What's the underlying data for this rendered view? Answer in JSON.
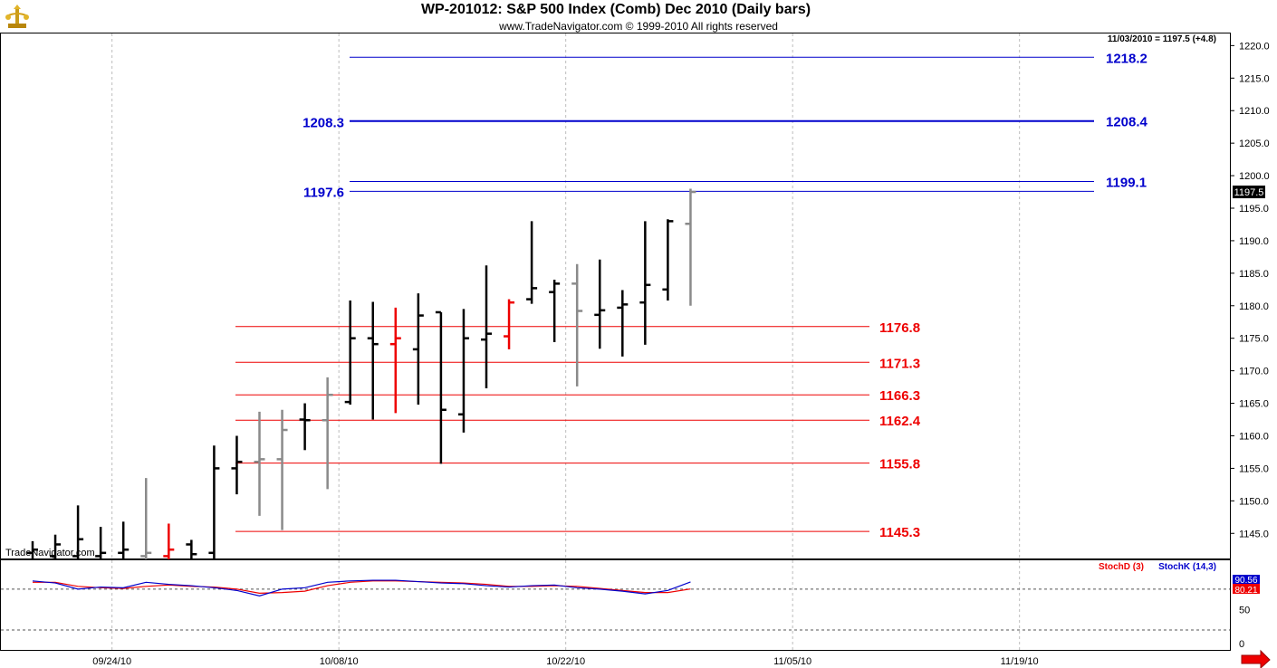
{
  "header": {
    "title": "WP-201012:  S&P 500 Index (Comb) Dec 2010  (Daily bars)",
    "subtitle": "www.TradeNavigator.com © 1999-2010 All rights reserved",
    "last_info": "11/03/2010 = 1197.5 (+4.8)",
    "watermark": "TradeNavigator.com"
  },
  "colors": {
    "up_bar": "#000000",
    "neutral_bar": "#8a8a8a",
    "down_bar": "#ee0000",
    "blue_level": "#0000cc",
    "red_level": "#ee0000",
    "stoch_d": "#ee0000",
    "stoch_k": "#0000cc",
    "grid": "#bcbcbc",
    "price_box": "#000000"
  },
  "icons": {
    "logo": "trade-navigator-logo-icon",
    "scroll": "scroll-right-arrow-icon"
  },
  "chart_data": {
    "type": "ohlc",
    "ylim": [
      1141,
      1222
    ],
    "y_ticks": [
      "1220.0",
      "1215.0",
      "1210.0",
      "1205.0",
      "1200.0",
      "1195.0",
      "1190.0",
      "1185.0",
      "1180.0",
      "1175.0",
      "1170.0",
      "1165.0",
      "1160.0",
      "1155.0",
      "1150.0",
      "1145.0"
    ],
    "x_ticks": [
      {
        "label": "09/24/10",
        "bar": 3.5
      },
      {
        "label": "10/08/10",
        "bar": 13.5
      },
      {
        "label": "10/22/10",
        "bar": 23.5
      },
      {
        "label": "11/05/10",
        "bar": 33.5
      },
      {
        "label": "11/19/10",
        "bar": 43.5
      }
    ],
    "last_price_label": "1197.5",
    "last_price": 1197.5,
    "bars": [
      {
        "o": 1142.0,
        "h": 1143.8,
        "l": 1141.0,
        "c": 1142.5,
        "color": "up"
      },
      {
        "o": 1141.5,
        "h": 1144.8,
        "l": 1141.0,
        "c": 1143.3,
        "color": "up"
      },
      {
        "o": 1141.5,
        "h": 1149.3,
        "l": 1141.0,
        "c": 1144.1,
        "color": "up"
      },
      {
        "o": 1141.5,
        "h": 1146.0,
        "l": 1141.0,
        "c": 1142.0,
        "color": "up"
      },
      {
        "o": 1142.0,
        "h": 1146.8,
        "l": 1141.0,
        "c": 1142.5,
        "color": "up"
      },
      {
        "o": 1141.5,
        "h": 1153.5,
        "l": 1141.0,
        "c": 1142.0,
        "color": "neutral"
      },
      {
        "o": 1141.5,
        "h": 1146.5,
        "l": 1141.0,
        "c": 1142.5,
        "color": "down"
      },
      {
        "o": 1143.3,
        "h": 1144.0,
        "l": 1141.0,
        "c": 1141.8,
        "color": "up"
      },
      {
        "o": 1142.0,
        "h": 1158.5,
        "l": 1141.0,
        "c": 1155.0,
        "color": "up"
      },
      {
        "o": 1155.0,
        "h": 1160.0,
        "l": 1151.0,
        "c": 1156.0,
        "color": "up"
      },
      {
        "o": 1156.0,
        "h": 1163.7,
        "l": 1147.7,
        "c": 1156.4,
        "color": "neutral"
      },
      {
        "o": 1156.4,
        "h": 1164.0,
        "l": 1145.5,
        "c": 1160.9,
        "color": "neutral"
      },
      {
        "o": 1162.5,
        "h": 1165.0,
        "l": 1157.8,
        "c": 1162.4,
        "color": "up"
      },
      {
        "o": 1162.4,
        "h": 1169.0,
        "l": 1151.8,
        "c": 1166.3,
        "color": "neutral"
      },
      {
        "o": 1165.2,
        "h": 1180.8,
        "l": 1164.8,
        "c": 1175.0,
        "color": "up"
      },
      {
        "o": 1175.0,
        "h": 1180.6,
        "l": 1162.5,
        "c": 1174.1,
        "color": "up"
      },
      {
        "o": 1174.1,
        "h": 1179.7,
        "l": 1163.5,
        "c": 1175.0,
        "color": "down"
      },
      {
        "o": 1173.3,
        "h": 1181.9,
        "l": 1164.8,
        "c": 1178.5,
        "color": "up"
      },
      {
        "o": 1179.0,
        "h": 1179.0,
        "l": 1155.7,
        "c": 1164.0,
        "color": "up"
      },
      {
        "o": 1163.3,
        "h": 1179.5,
        "l": 1160.5,
        "c": 1175.0,
        "color": "up"
      },
      {
        "o": 1174.8,
        "h": 1186.2,
        "l": 1167.3,
        "c": 1175.7,
        "color": "up"
      },
      {
        "o": 1175.3,
        "h": 1181.0,
        "l": 1173.3,
        "c": 1180.5,
        "color": "down"
      },
      {
        "o": 1181.0,
        "h": 1193.0,
        "l": 1180.3,
        "c": 1182.7,
        "color": "up"
      },
      {
        "o": 1182.1,
        "h": 1184.0,
        "l": 1174.4,
        "c": 1183.4,
        "color": "up"
      },
      {
        "o": 1183.4,
        "h": 1186.4,
        "l": 1167.6,
        "c": 1179.2,
        "color": "neutral"
      },
      {
        "o": 1178.6,
        "h": 1187.1,
        "l": 1173.4,
        "c": 1179.3,
        "color": "up"
      },
      {
        "o": 1179.7,
        "h": 1182.4,
        "l": 1172.2,
        "c": 1180.2,
        "color": "up"
      },
      {
        "o": 1180.5,
        "h": 1193.0,
        "l": 1174.0,
        "c": 1183.2,
        "color": "up"
      },
      {
        "o": 1182.5,
        "h": 1193.3,
        "l": 1180.8,
        "c": 1193.0,
        "color": "up"
      },
      {
        "o": 1192.6,
        "h": 1198.0,
        "l": 1180.0,
        "c": 1197.5,
        "color": "neutral"
      }
    ],
    "levels_blue_left": [
      {
        "value": 1208.3,
        "label": "1208.3"
      },
      {
        "value": 1197.6,
        "label": "1197.6"
      }
    ],
    "levels_blue_right": [
      {
        "value": 1218.2,
        "label": "1218.2"
      },
      {
        "value": 1208.4,
        "label": "1208.4"
      },
      {
        "value": 1199.1,
        "label": "1199.1"
      }
    ],
    "levels_red": [
      {
        "value": 1176.8,
        "label": "1176.8"
      },
      {
        "value": 1171.3,
        "label": "1171.3"
      },
      {
        "value": 1166.3,
        "label": "1166.3"
      },
      {
        "value": 1162.4,
        "label": "1162.4"
      },
      {
        "value": 1155.8,
        "label": "1155.8"
      },
      {
        "value": 1145.3,
        "label": "1145.3"
      }
    ],
    "stochastic": {
      "legend_d": "StochD (3)",
      "legend_k": "StochK (14,3)",
      "ylim": [
        0,
        100
      ],
      "y_ticks": [
        "50",
        "0"
      ],
      "ref_lines": [
        80,
        20
      ],
      "k_label": "90.56",
      "d_label": "80.21",
      "k_values": [
        92,
        89,
        80,
        83,
        82,
        90,
        87,
        85,
        82,
        78,
        70,
        80,
        82,
        90,
        92,
        93,
        93,
        91,
        89,
        88,
        85,
        83,
        85,
        86,
        82,
        80,
        77,
        73,
        78,
        90.56
      ],
      "d_values": [
        90,
        90,
        84,
        82,
        81,
        84,
        86,
        84,
        83,
        80,
        74,
        75,
        77,
        85,
        90,
        92,
        92,
        91,
        90,
        89,
        87,
        84,
        84,
        85,
        84,
        81,
        78,
        75,
        75,
        80.21
      ]
    }
  }
}
